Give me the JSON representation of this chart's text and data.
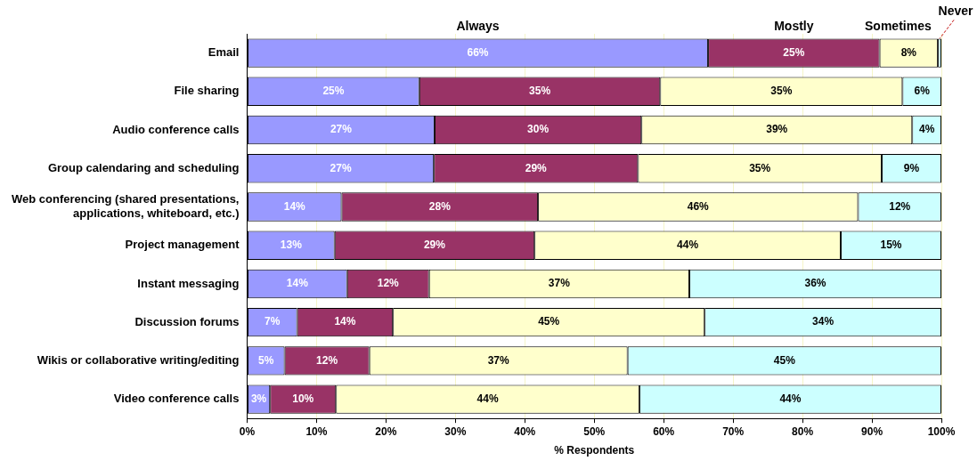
{
  "chart_data": {
    "type": "bar",
    "orientation": "horizontal",
    "stacked": true,
    "xlabel": "% Respondents",
    "categories": [
      "Email",
      "File sharing",
      "Audio conference calls",
      "Group calendaring and scheduling",
      "Web conferencing (shared presentations, applications, whiteboard, etc.)",
      "Project management",
      "Instant messaging",
      "Discussion forums",
      "Wikis or collaborative writing/editing",
      "Video conference calls"
    ],
    "series": [
      {
        "name": "Always",
        "color": "#9999ff",
        "values": [
          66.4,
          24.8,
          27.0,
          26.9,
          13.6,
          12.6,
          14.4,
          7.2,
          5.4,
          3.3
        ],
        "value_labels": [
          "66%",
          "25%",
          "27%",
          "27%",
          "14%",
          "13%",
          "14%",
          "7%",
          "5%",
          "3%"
        ]
      },
      {
        "name": "Mostly",
        "color": "#993366",
        "values": [
          24.7,
          34.7,
          29.8,
          29.4,
          28.3,
          28.8,
          11.8,
          13.8,
          12.2,
          9.5
        ],
        "value_labels": [
          "25%",
          "35%",
          "30%",
          "29%",
          "28%",
          "29%",
          "12%",
          "14%",
          "12%",
          "10%"
        ]
      },
      {
        "name": "Sometimes",
        "color": "#ffffcc",
        "values": [
          8.4,
          34.9,
          39.0,
          35.1,
          46.1,
          44.1,
          37.5,
          44.9,
          37.2,
          43.7
        ],
        "value_labels": [
          "8%",
          "35%",
          "39%",
          "35%",
          "46%",
          "44%",
          "37%",
          "45%",
          "37%",
          "44%"
        ]
      },
      {
        "name": "Never",
        "color": "#ccffff",
        "values": [
          0.5,
          5.6,
          4.2,
          8.6,
          12.0,
          14.5,
          36.3,
          34.1,
          45.2,
          43.5
        ],
        "value_labels": [
          null,
          "6%",
          "4%",
          "9%",
          "12%",
          "15%",
          "36%",
          "34%",
          "45%",
          "44%"
        ]
      }
    ],
    "xlim": [
      0,
      100
    ],
    "xticks": [
      {
        "value": 0,
        "label": "0%"
      },
      {
        "value": 10,
        "label": "10%"
      },
      {
        "value": 20,
        "label": "20%"
      },
      {
        "value": 30,
        "label": "30%"
      },
      {
        "value": 40,
        "label": "40%"
      },
      {
        "value": 50,
        "label": "50%"
      },
      {
        "value": 60,
        "label": "60%"
      },
      {
        "value": 70,
        "label": "70%"
      },
      {
        "value": 80,
        "label": "80%"
      },
      {
        "value": 90,
        "label": "90%"
      },
      {
        "value": 100,
        "label": "100%"
      }
    ],
    "grid": "x",
    "legend": false
  }
}
